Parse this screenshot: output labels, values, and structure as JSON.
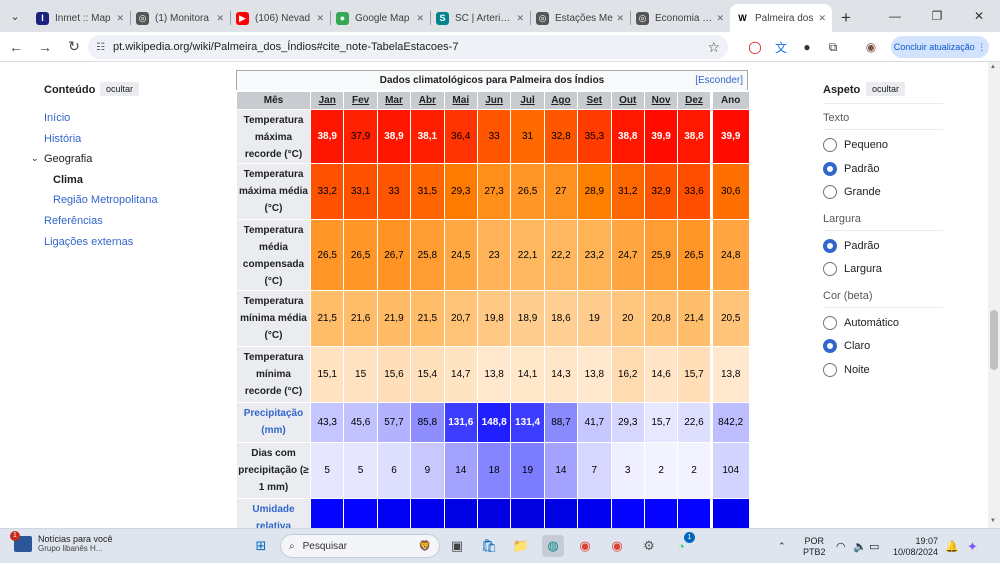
{
  "browser": {
    "tabs": [
      {
        "title": "Inmet :: Map",
        "color": "#1a237e",
        "glyph": "I"
      },
      {
        "title": "(1) Monitora",
        "color": "#555555",
        "glyph": "◎"
      },
      {
        "title": "(106) Nevad",
        "color": "#ff0000",
        "glyph": "▶"
      },
      {
        "title": "Google Map",
        "color": "#34a853",
        "glyph": "●"
      },
      {
        "title": "SC | Arteris L",
        "color": "#00838f",
        "glyph": "S"
      },
      {
        "title": "Estações Me",
        "color": "#555555",
        "glyph": "◎"
      },
      {
        "title": "Economia Bá",
        "color": "#555555",
        "glyph": "◎"
      },
      {
        "title": "Palmeira dos",
        "color": "#000000",
        "glyph": "W",
        "active": true
      }
    ],
    "url": "pt.wikipedia.org/wiki/Palmeira_dos_Índios#cite_note-TabelaEstacoes-7",
    "update_label": "Concluir atualização"
  },
  "toc": {
    "heading": "Conteúdo",
    "hide_label": "ocultar",
    "items": [
      "Início",
      "História",
      "Geografia",
      "Clima",
      "Região Metropolitana",
      "Referências",
      "Ligações externas"
    ]
  },
  "climate": {
    "caption": "Dados climatológicos para Palmeira dos Índios",
    "hide_link": "[Esconder]",
    "header": {
      "label": "Mês",
      "months": [
        "Jan",
        "Fev",
        "Mar",
        "Abr",
        "Mai",
        "Jun",
        "Jul",
        "Ago",
        "Set",
        "Out",
        "Nov",
        "Dez"
      ],
      "year": "Ano"
    },
    "rows": [
      {
        "label": "Temperatura máxima recorde (°C)",
        "values": [
          "38,9",
          "37,9",
          "38,9",
          "38,1",
          "36,4",
          "33",
          "31",
          "32,8",
          "35,3",
          "38,8",
          "39,9",
          "38,8"
        ],
        "year": "39,9",
        "colors": [
          "#ff1600",
          "#ff2100",
          "#ff1600",
          "#ff1f00",
          "#ff3400",
          "#ff5400",
          "#ff6a00",
          "#ff5600",
          "#ff3b00",
          "#ff1700",
          "#ff0b00",
          "#ff1700"
        ],
        "year_color": "#ff0b00",
        "text": [
          "#fff",
          "#000",
          "#fff",
          "#fff",
          "#000",
          "#000",
          "#000",
          "#000",
          "#000",
          "#fff",
          "#fff",
          "#fff"
        ],
        "year_text": "#fff"
      },
      {
        "label": "Temperatura máxima média (°C)",
        "values": [
          "33,2",
          "33,1",
          "33",
          "31,5",
          "29,3",
          "27,3",
          "26,5",
          "27",
          "28,9",
          "31,2",
          "32,9",
          "33,6"
        ],
        "year": "30,6",
        "colors": [
          "#ff5100",
          "#ff5200",
          "#ff5400",
          "#ff6500",
          "#ff7b00",
          "#ff8e1a",
          "#ff9627",
          "#ff9120",
          "#ff7f00",
          "#ff6800",
          "#ff5500",
          "#ff4e00"
        ],
        "year_color": "#ff6e00",
        "text": [
          "#000",
          "#000",
          "#000",
          "#000",
          "#000",
          "#000",
          "#000",
          "#000",
          "#000",
          "#000",
          "#000",
          "#000"
        ],
        "year_text": "#000"
      },
      {
        "label": "Temperatura média compensada (°C)",
        "values": [
          "26,5",
          "26,5",
          "26,7",
          "25,8",
          "24,5",
          "23",
          "22,1",
          "22,2",
          "23,2",
          "24,7",
          "25,9",
          "26,5"
        ],
        "year": "24,8",
        "colors": [
          "#ff9627",
          "#ff9627",
          "#ff9424",
          "#ff9d33",
          "#ffa743",
          "#ffb257",
          "#ffb860",
          "#ffb860",
          "#ffb256",
          "#ffa541",
          "#ff9d33",
          "#ff9627"
        ],
        "year_color": "#ffa541",
        "text": [
          "#000",
          "#000",
          "#000",
          "#000",
          "#000",
          "#000",
          "#000",
          "#000",
          "#000",
          "#000",
          "#000",
          "#000"
        ],
        "year_text": "#000"
      },
      {
        "label": "Temperatura mínima média (°C)",
        "values": [
          "21,5",
          "21,6",
          "21,9",
          "21,5",
          "20,7",
          "19,8",
          "18,9",
          "18,6",
          "19",
          "20",
          "20,8",
          "21,4"
        ],
        "year": "20,5",
        "colors": [
          "#ffbd6a",
          "#ffbd6a",
          "#ffbb66",
          "#ffbd6a",
          "#ffc377",
          "#ffc884",
          "#ffcd8f",
          "#ffcf93",
          "#ffcc8e",
          "#ffc680",
          "#ffc277",
          "#ffbe6b"
        ],
        "year_color": "#ffc47a",
        "text": [
          "#000",
          "#000",
          "#000",
          "#000",
          "#000",
          "#000",
          "#000",
          "#000",
          "#000",
          "#000",
          "#000",
          "#000"
        ],
        "year_text": "#000"
      },
      {
        "label": "Temperatura mínima recorde (°C)",
        "values": [
          "15,1",
          "15",
          "15,6",
          "15,4",
          "14,7",
          "13,8",
          "14,1",
          "14,3",
          "13,8",
          "16,2",
          "14,6",
          "15,7"
        ],
        "year": "13,8",
        "colors": [
          "#ffe2c0",
          "#ffe2c1",
          "#ffdfba",
          "#ffe0bc",
          "#ffe4c4",
          "#ffe8cd",
          "#ffe7ca",
          "#ffe6c8",
          "#ffe8cd",
          "#ffdbb2",
          "#ffe4c5",
          "#ffdeb8"
        ],
        "year_color": "#ffe8cd",
        "text": [
          "#000",
          "#000",
          "#000",
          "#000",
          "#000",
          "#000",
          "#000",
          "#000",
          "#000",
          "#000",
          "#000",
          "#000"
        ],
        "year_text": "#000"
      },
      {
        "label": "Precipitação (mm)",
        "link": true,
        "values": [
          "43,3",
          "45,6",
          "57,7",
          "85,8",
          "131,6",
          "148,8",
          "131,4",
          "88,7",
          "41,7",
          "29,3",
          "15,7",
          "22,6"
        ],
        "year": "842,2",
        "colors": [
          "#c5c5ff",
          "#c2c2ff",
          "#b2b2ff",
          "#8e8eff",
          "#3d3dff",
          "#2020ff",
          "#3d3dff",
          "#8a8aff",
          "#c7c7ff",
          "#d6d6ff",
          "#e7e7ff",
          "#dedeff"
        ],
        "year_color": "#bdbdff",
        "text": [
          "#000",
          "#000",
          "#000",
          "#000",
          "#fff",
          "#fff",
          "#fff",
          "#000",
          "#000",
          "#000",
          "#000",
          "#000"
        ],
        "year_text": "#000"
      },
      {
        "label": "Dias com precipitação (≥ 1 mm)",
        "values": [
          "5",
          "5",
          "6",
          "9",
          "14",
          "18",
          "19",
          "14",
          "7",
          "3",
          "2",
          "2"
        ],
        "year": "104",
        "colors": [
          "#e6e6ff",
          "#e6e6ff",
          "#dedeff",
          "#c8c8ff",
          "#a3a3ff",
          "#8585ff",
          "#7c7cff",
          "#a3a3ff",
          "#d6d6ff",
          "#efefff",
          "#f3f3ff",
          "#f3f3ff"
        ],
        "year_color": "#d3d3ff",
        "text": [
          "#000",
          "#000",
          "#000",
          "#000",
          "#000",
          "#000",
          "#000",
          "#000",
          "#000",
          "#000",
          "#000",
          "#000"
        ],
        "year_text": "#000"
      },
      {
        "label": "Umidade relativa",
        "link": true,
        "values": [
          "",
          "",
          "",
          "",
          "",
          "",
          "",
          "",
          "",
          "",
          "",
          ""
        ],
        "year": "",
        "colors": [
          "#0404ff",
          "#0404ff",
          "#0000f5",
          "#0000ee",
          "#0000e5",
          "#0000e0",
          "#0000e0",
          "#0000e5",
          "#0000ee",
          "#0404ff",
          "#0404ff",
          "#0404ff"
        ],
        "year_color": "#0000f0",
        "text": [
          "#fff",
          "#fff",
          "#fff",
          "#fff",
          "#fff",
          "#fff",
          "#fff",
          "#fff",
          "#fff",
          "#fff",
          "#fff",
          "#fff"
        ],
        "year_text": "#fff"
      }
    ]
  },
  "aspect": {
    "heading": "Aspeto",
    "hide_label": "ocultar",
    "text_section": "Texto",
    "text_options": [
      "Pequeno",
      "Padrão",
      "Grande"
    ],
    "width_section": "Largura",
    "width_options": [
      "Padrão",
      "Largura"
    ],
    "color_section": "Cor (beta)",
    "color_options": [
      "Automático",
      "Claro",
      "Noite"
    ]
  },
  "taskbar": {
    "news_title": "Notícias para você",
    "news_sub": "Grupo libanês H...",
    "news_badge": "1",
    "search_placeholder": "Pesquisar",
    "lang": "POR",
    "kbd": "PTB2",
    "time": "19:07",
    "date": "10/08/2024",
    "whatsapp_badge": "1"
  }
}
